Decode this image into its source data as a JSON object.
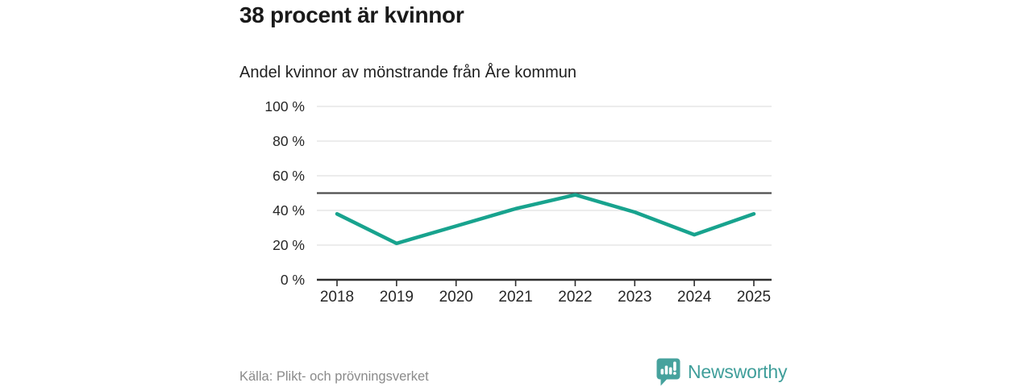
{
  "chart_data": {
    "type": "line",
    "title": "38 procent är kvinnor",
    "subtitle": "Andel kvinnor av mönstrande från Åre kommun",
    "categories": [
      "2018",
      "2019",
      "2020",
      "2021",
      "2022",
      "2023",
      "2024",
      "2025"
    ],
    "values": [
      38,
      21,
      31,
      41,
      49,
      39,
      26,
      38
    ],
    "series_name": "Andel kvinnor av mönstrande",
    "unit": "%",
    "ylim": [
      0,
      100
    ],
    "ytick_labels": [
      "0 %",
      "20 %",
      "40 %",
      "60 %",
      "80 %",
      "100 %"
    ],
    "reference_line": 50,
    "grid": true,
    "legend": "none",
    "colors": {
      "line": "#18a38e",
      "reference": "#4d4d4d",
      "grid": "#d9d9d9",
      "axis": "#2e2e2e",
      "tick_label": "#262626"
    }
  },
  "footer": {
    "source": "Källa: Plikt- och prövningsverket",
    "brand_name": "Newsworthy",
    "brand_color": "#3f9e9a",
    "brand_icon": "newsworthy-bubble-barchart-icon"
  }
}
